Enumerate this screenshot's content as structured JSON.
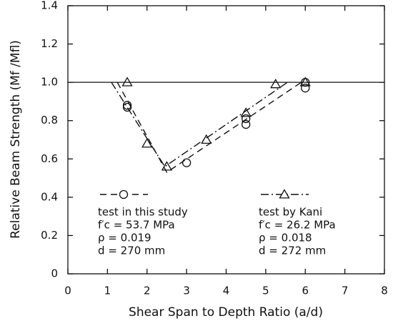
{
  "chart_data": {
    "type": "scatter",
    "x_label": "Shear Span to Depth Ratio (a/d)",
    "y_label": "Relative Beam Strength (Mf /Mfl)",
    "xlim": [
      0,
      8
    ],
    "xticks": [
      0,
      1,
      2,
      3,
      4,
      5,
      6,
      7,
      8
    ],
    "ylim": [
      0,
      1.4
    ],
    "yticks": [
      0,
      0.2,
      0.4,
      0.6,
      0.8,
      {
        "value": 1,
        "label": "1.0"
      },
      1.2,
      1.4
    ],
    "reference_line": 1,
    "series": [
      {
        "name": "test in this study",
        "marker": "circle",
        "color": "#111111",
        "dash": "9,6",
        "x": [
          1.5,
          1.5,
          3,
          4.5,
          4.5,
          6,
          6
        ],
        "values": [
          0.87,
          0.88,
          0.58,
          0.81,
          0.78,
          0.97,
          1.0
        ],
        "fit_x": [
          1.25,
          2.5,
          5.9
        ],
        "fit_y": [
          1.0,
          0.53,
          1.0
        ],
        "notes": [
          "f′c = 53.7 MPa",
          "ρ = 0.019",
          "d = 270 mm"
        ]
      },
      {
        "name": "test by Kani",
        "marker": "triangle",
        "color": "#111111",
        "dash": "11,4,2,4",
        "x": [
          1.5,
          2,
          2.5,
          3.5,
          4.5,
          5.25,
          6
        ],
        "values": [
          1.0,
          0.68,
          0.56,
          0.7,
          0.84,
          0.99,
          1.0
        ],
        "fit_x": [
          1.1,
          2.45,
          5.55
        ],
        "fit_y": [
          1.0,
          0.56,
          1.0
        ],
        "notes": [
          "f′c = 26.2 MPa",
          "ρ = 0.018",
          "d = 272 mm"
        ]
      }
    ]
  }
}
